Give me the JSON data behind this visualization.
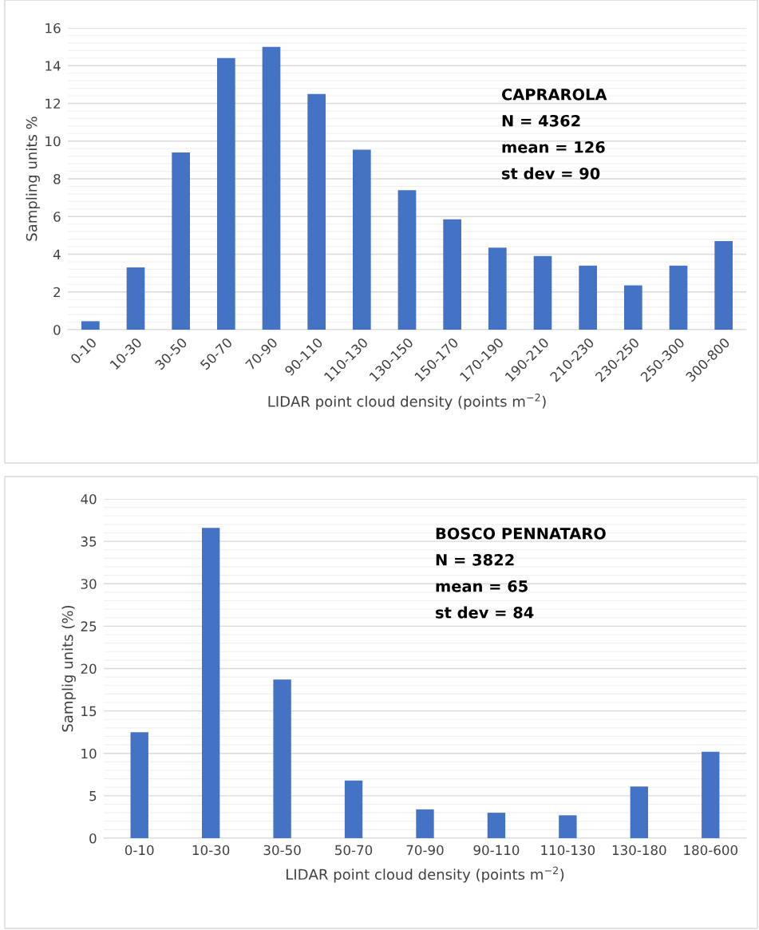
{
  "chart_data": [
    {
      "type": "bar",
      "categories": [
        "0-10",
        "10-30",
        "30-50",
        "50-70",
        "70-90",
        "90-110",
        "110-130",
        "130-150",
        "150-170",
        "170-190",
        "190-210",
        "210-230",
        "230-250",
        "250-300",
        "300-800"
      ],
      "values": [
        0.45,
        3.3,
        9.4,
        14.4,
        15.0,
        12.5,
        9.55,
        7.4,
        5.85,
        4.35,
        3.9,
        3.4,
        2.35,
        3.4,
        4.7
      ],
      "color": "#4472c4",
      "ylim": [
        0,
        16
      ],
      "yticks": [
        0,
        2,
        4,
        6,
        8,
        10,
        12,
        14,
        16
      ],
      "grid": "y",
      "xlabel": "LIDAR point cloud density (points m$^{−2}$)",
      "ylabel": "Sampling units %",
      "annotations": [
        "CAPRAROLA",
        "N = 4362",
        "mean = 126",
        "st dev = 90"
      ]
    },
    {
      "type": "bar",
      "categories": [
        "0-10",
        "10-30",
        "30-50",
        "50-70",
        "70-90",
        "90-110",
        "110-130",
        "130-180",
        "180-600"
      ],
      "values": [
        12.5,
        36.6,
        18.7,
        6.8,
        3.4,
        3.0,
        2.7,
        6.1,
        10.2
      ],
      "color": "#4472c4",
      "ylim": [
        0,
        40
      ],
      "yticks": [
        0,
        5,
        10,
        15,
        20,
        25,
        30,
        35,
        40
      ],
      "grid": "y",
      "xlabel": "LIDAR point cloud density (points m$^{−2}$)",
      "ylabel": "Samplig units (%)",
      "annotations": [
        "BOSCO PENNATARO",
        "N = 3822",
        "mean = 65",
        "st dev = 84"
      ]
    }
  ]
}
